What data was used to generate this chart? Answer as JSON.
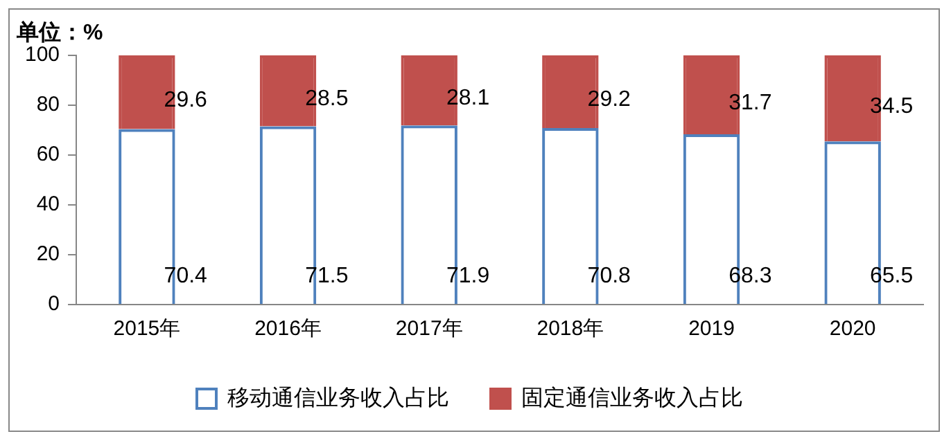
{
  "chart_data": {
    "type": "bar",
    "ylabel": "单位：%",
    "categories": [
      "2015年",
      "2016年",
      "2017年",
      "2018年",
      "2019",
      "2020"
    ],
    "stacked": true,
    "series": [
      {
        "name": "移动通信业务收入占比",
        "color": "#4f81bd",
        "values": [
          70.4,
          71.5,
          71.9,
          70.8,
          68.3,
          65.5
        ]
      },
      {
        "name": "固定通信业务收入占比",
        "color": "#c0504d",
        "values": [
          29.6,
          28.5,
          28.1,
          29.2,
          31.7,
          34.5
        ]
      }
    ],
    "ylim": [
      0,
      100
    ],
    "yticks": [
      0,
      20,
      40,
      60,
      80,
      100
    ],
    "grid": false,
    "legend": "bottom",
    "data_labels": true
  }
}
